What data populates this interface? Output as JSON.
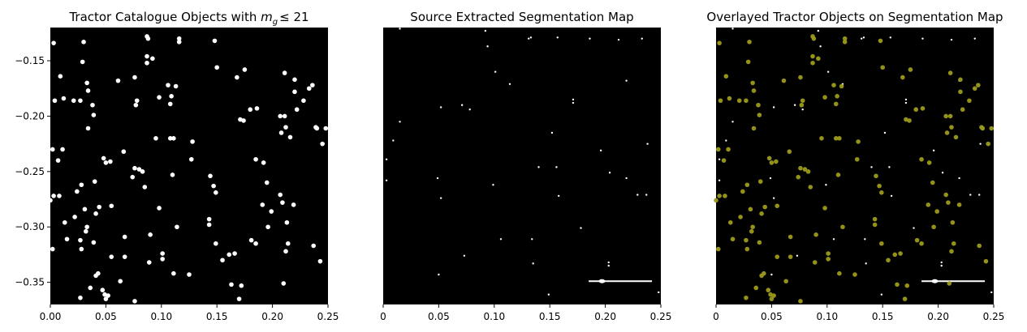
{
  "figure": {
    "background": "#ffffff",
    "panel_background": "#000000",
    "object_color": "#ffffff",
    "overlay_color": "#9c9a1a"
  },
  "chart_data": [
    {
      "type": "scatter",
      "title": "Tractor Catalogue Objects with ",
      "title_math": "m",
      "title_math_sub": "g",
      "title_suffix": "≤ 21",
      "xlim": [
        0,
        0.25
      ],
      "ylim": [
        -0.37,
        -0.12
      ],
      "x_ticks": [
        "0.00",
        "0.05",
        "0.10",
        "0.15",
        "0.20",
        "0.25"
      ],
      "x_tick_values": [
        0,
        0.05,
        0.1,
        0.15,
        0.2,
        0.25
      ],
      "y_ticks": [
        "−0.15",
        "−0.20",
        "−0.25",
        "−0.30",
        "−0.35"
      ],
      "y_tick_values": [
        -0.15,
        -0.2,
        -0.25,
        -0.3,
        -0.35
      ],
      "grid": false,
      "point_color": "#ffffff",
      "points": [
        [
          0.003,
          -0.134
        ],
        [
          0.004,
          -0.186
        ],
        [
          0.009,
          -0.164
        ],
        [
          0.012,
          -0.184
        ],
        [
          0.021,
          -0.186
        ],
        [
          0.03,
          -0.133
        ],
        [
          0.033,
          -0.17
        ],
        [
          0.027,
          -0.186
        ],
        [
          0.029,
          -0.151
        ],
        [
          0.034,
          -0.177
        ],
        [
          0.038,
          -0.19
        ],
        [
          0.039,
          -0.199
        ],
        [
          0.034,
          -0.211
        ],
        [
          0.002,
          -0.23
        ],
        [
          0.007,
          -0.24
        ],
        [
          0.011,
          -0.23
        ],
        [
          0.003,
          -0.272
        ],
        [
          0.008,
          -0.272
        ],
        [
          0.013,
          -0.296
        ],
        [
          0.015,
          -0.311
        ],
        [
          0.0,
          -0.276
        ],
        [
          0.002,
          -0.32
        ],
        [
          0.024,
          -0.268
        ],
        [
          0.028,
          -0.262
        ],
        [
          0.022,
          -0.291
        ],
        [
          0.031,
          -0.284
        ],
        [
          0.033,
          -0.3
        ],
        [
          0.032,
          -0.304
        ],
        [
          0.027,
          -0.312
        ],
        [
          0.028,
          -0.32
        ],
        [
          0.039,
          -0.314
        ],
        [
          0.041,
          -0.288
        ],
        [
          0.044,
          -0.282
        ],
        [
          0.04,
          -0.259
        ],
        [
          0.048,
          -0.238
        ],
        [
          0.05,
          -0.242
        ],
        [
          0.054,
          -0.241
        ],
        [
          0.055,
          -0.281
        ],
        [
          0.061,
          -0.168
        ],
        [
          0.066,
          -0.232
        ],
        [
          0.055,
          -0.327
        ],
        [
          0.041,
          -0.344
        ],
        [
          0.043,
          -0.342
        ],
        [
          0.047,
          -0.357
        ],
        [
          0.049,
          -0.361
        ],
        [
          0.052,
          -0.362
        ],
        [
          0.036,
          -0.355
        ],
        [
          0.027,
          -0.364
        ],
        [
          0.05,
          -0.365
        ],
        [
          0.063,
          -0.349
        ],
        [
          0.067,
          -0.309
        ],
        [
          0.067,
          -0.327
        ],
        [
          0.074,
          -0.255
        ],
        [
          0.076,
          -0.247
        ],
        [
          0.08,
          -0.248
        ],
        [
          0.083,
          -0.25
        ],
        [
          0.085,
          -0.264
        ],
        [
          0.09,
          -0.307
        ],
        [
          0.089,
          -0.332
        ],
        [
          0.076,
          -0.367
        ],
        [
          0.076,
          -0.165
        ],
        [
          0.078,
          -0.186
        ],
        [
          0.077,
          -0.19
        ],
        [
          0.087,
          -0.146
        ],
        [
          0.087,
          -0.152
        ],
        [
          0.092,
          -0.148
        ],
        [
          0.087,
          -0.128
        ],
        [
          0.088,
          -0.13
        ],
        [
          0.095,
          -0.22
        ],
        [
          0.098,
          -0.183
        ],
        [
          0.101,
          -0.329
        ],
        [
          0.101,
          -0.324
        ],
        [
          0.108,
          -0.189
        ],
        [
          0.106,
          -0.172
        ],
        [
          0.109,
          -0.182
        ],
        [
          0.108,
          -0.22
        ],
        [
          0.111,
          -0.22
        ],
        [
          0.11,
          -0.253
        ],
        [
          0.113,
          -0.173
        ],
        [
          0.116,
          -0.133
        ],
        [
          0.116,
          -0.13
        ],
        [
          0.111,
          -0.342
        ],
        [
          0.114,
          -0.3
        ],
        [
          0.127,
          -0.239
        ],
        [
          0.128,
          -0.223
        ],
        [
          0.125,
          -0.343
        ],
        [
          0.144,
          -0.254
        ],
        [
          0.147,
          -0.263
        ],
        [
          0.148,
          -0.132
        ],
        [
          0.15,
          -0.156
        ],
        [
          0.149,
          -0.269
        ],
        [
          0.149,
          -0.315
        ],
        [
          0.143,
          -0.293
        ],
        [
          0.143,
          -0.298
        ],
        [
          0.155,
          -0.33
        ],
        [
          0.161,
          -0.325
        ],
        [
          0.163,
          -0.352
        ],
        [
          0.166,
          -0.324
        ],
        [
          0.172,
          -0.353
        ],
        [
          0.17,
          -0.365
        ],
        [
          0.168,
          -0.165
        ],
        [
          0.175,
          -0.158
        ],
        [
          0.174,
          -0.204
        ],
        [
          0.171,
          -0.203
        ],
        [
          0.18,
          -0.194
        ],
        [
          0.186,
          -0.193
        ],
        [
          0.185,
          -0.239
        ],
        [
          0.191,
          -0.28
        ],
        [
          0.192,
          -0.242
        ],
        [
          0.196,
          -0.3
        ],
        [
          0.181,
          -0.312
        ],
        [
          0.185,
          -0.315
        ],
        [
          0.195,
          -0.26
        ],
        [
          0.199,
          -0.286
        ],
        [
          0.207,
          -0.2
        ],
        [
          0.208,
          -0.215
        ],
        [
          0.211,
          -0.2
        ],
        [
          0.211,
          -0.161
        ],
        [
          0.212,
          -0.21
        ],
        [
          0.216,
          -0.219
        ],
        [
          0.22,
          -0.167
        ],
        [
          0.22,
          -0.178
        ],
        [
          0.222,
          -0.194
        ],
        [
          0.228,
          -0.186
        ],
        [
          0.233,
          -0.175
        ],
        [
          0.236,
          -0.172
        ],
        [
          0.239,
          -0.21
        ],
        [
          0.24,
          -0.211
        ],
        [
          0.245,
          -0.225
        ],
        [
          0.248,
          -0.211
        ],
        [
          0.207,
          -0.271
        ],
        [
          0.209,
          -0.278
        ],
        [
          0.213,
          -0.296
        ],
        [
          0.219,
          -0.28
        ],
        [
          0.212,
          -0.322
        ],
        [
          0.21,
          -0.351
        ],
        [
          0.214,
          -0.315
        ],
        [
          0.237,
          -0.317
        ],
        [
          0.243,
          -0.331
        ],
        [
          0.098,
          -0.283
        ]
      ]
    },
    {
      "type": "scatter",
      "title": "Source Extracted Segmentation Map",
      "xlim": [
        0,
        0.25
      ],
      "ylim": [
        -0.37,
        -0.12
      ],
      "x_ticks": [
        "0",
        "0.05",
        "0.10",
        "0.15",
        "0.20",
        "0.25"
      ],
      "x_tick_values": [
        0,
        0.05,
        0.1,
        0.15,
        0.2,
        0.25
      ],
      "grid": false,
      "point_color": "#ffffff",
      "points": [
        [
          0.015,
          -0.121
        ],
        [
          0.092,
          -0.123
        ],
        [
          0.131,
          -0.13
        ],
        [
          0.157,
          -0.129
        ],
        [
          0.186,
          -0.13
        ],
        [
          0.212,
          -0.131
        ],
        [
          0.233,
          -0.13
        ],
        [
          0.094,
          -0.137
        ],
        [
          0.101,
          -0.16
        ],
        [
          0.114,
          -0.171
        ],
        [
          0.219,
          -0.168
        ],
        [
          0.052,
          -0.192
        ],
        [
          0.071,
          -0.19
        ],
        [
          0.078,
          -0.194
        ],
        [
          0.171,
          -0.185
        ],
        [
          0.171,
          -0.188
        ],
        [
          0.015,
          -0.205
        ],
        [
          0.009,
          -0.222
        ],
        [
          0.152,
          -0.215
        ],
        [
          0.238,
          -0.225
        ],
        [
          0.003,
          -0.239
        ],
        [
          0.049,
          -0.256
        ],
        [
          0.14,
          -0.246
        ],
        [
          0.196,
          -0.231
        ],
        [
          0.204,
          -0.251
        ],
        [
          0.219,
          -0.256
        ],
        [
          0.003,
          -0.258
        ],
        [
          0.099,
          -0.262
        ],
        [
          0.052,
          -0.274
        ],
        [
          0.158,
          -0.272
        ],
        [
          0.229,
          -0.271
        ],
        [
          0.237,
          -0.271
        ],
        [
          0.134,
          -0.311
        ],
        [
          0.106,
          -0.311
        ],
        [
          0.178,
          -0.301
        ],
        [
          0.073,
          -0.326
        ],
        [
          0.05,
          -0.343
        ],
        [
          0.135,
          -0.333
        ],
        [
          0.149,
          -0.361
        ],
        [
          0.203,
          -0.332
        ],
        [
          0.203,
          -0.335
        ],
        [
          0.248,
          -0.359
        ],
        [
          0.156,
          -0.246
        ],
        [
          0.133,
          -0.129
        ]
      ],
      "streak": {
        "x_start": 0.185,
        "x_end": 0.242,
        "y": -0.349,
        "x_knot": 0.197
      }
    },
    {
      "type": "scatter",
      "title": "Overlayed Tractor Objects on Segmentation Map",
      "xlim": [
        0,
        0.25
      ],
      "ylim": [
        -0.37,
        -0.12
      ],
      "x_ticks": [
        "0",
        "0.05",
        "0.10",
        "0.15",
        "0.20",
        "0.25"
      ],
      "x_tick_values": [
        0,
        0.05,
        0.1,
        0.15,
        0.2,
        0.25
      ],
      "grid": false,
      "point_color": "#9c9a1a",
      "overlay": "catalogue points drawn over segmentation map"
    }
  ]
}
